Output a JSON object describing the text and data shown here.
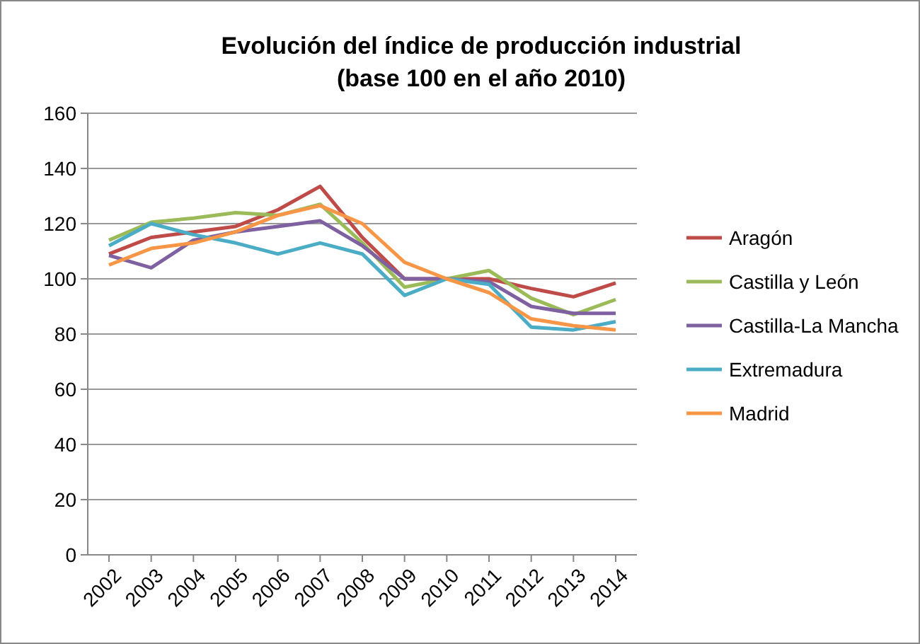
{
  "chart_data": {
    "type": "line",
    "title": "Evolución del índice de producción industrial\n(base 100 en el año 2010)",
    "categories": [
      "2002",
      "2003",
      "2004",
      "2005",
      "2006",
      "2007",
      "2008",
      "2009",
      "2010",
      "2011",
      "2012",
      "2013",
      "2014"
    ],
    "series": [
      {
        "name": "Aragón",
        "color": "#be4b48",
        "values": [
          109,
          115,
          117,
          119,
          125,
          133.5,
          115,
          100,
          100,
          100,
          96.5,
          93.5,
          98.5
        ]
      },
      {
        "name": "Castilla y León",
        "color": "#9bbb59",
        "values": [
          114,
          120.5,
          122,
          124,
          123,
          127,
          113,
          97,
          100,
          103,
          93,
          87,
          92.5
        ]
      },
      {
        "name": "Castilla-La Mancha",
        "color": "#7f60a1",
        "values": [
          108.5,
          104,
          114,
          117,
          119,
          121,
          112,
          100,
          100,
          99,
          90,
          87.5,
          87.5
        ]
      },
      {
        "name": "Extremadura",
        "color": "#4bacc6",
        "values": [
          112,
          120,
          116,
          113,
          109,
          113,
          109,
          94,
          100,
          98,
          82.5,
          81.5,
          84.5
        ]
      },
      {
        "name": "Madrid",
        "color": "#f79646",
        "values": [
          105,
          111,
          113,
          117,
          123,
          126.5,
          120,
          106,
          100,
          95,
          85.5,
          83,
          81.5
        ]
      }
    ],
    "ylim": [
      0,
      160
    ],
    "yticks": [
      0,
      20,
      40,
      60,
      80,
      100,
      120,
      140,
      160
    ],
    "grid": "y",
    "legend": "right",
    "marker": "none",
    "line_style": "solid"
  }
}
